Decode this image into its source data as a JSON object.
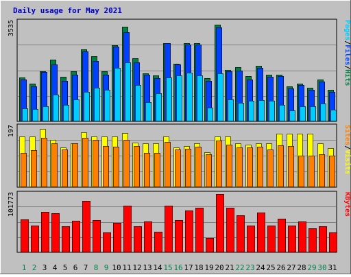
{
  "title": "Daily usage for May 2021",
  "colors": {
    "background": "#c0c0c0",
    "title": "#0000cc",
    "pages": "#00ccff",
    "files": "#0040ff",
    "hits": "#008040",
    "visits": "#ffff00",
    "sites": "#ff8000",
    "kbytes": "#ff0000",
    "weekday_label": "#000000",
    "weekend_label": "#00804a"
  },
  "chart_data": [
    {
      "type": "bar",
      "name": "hits-files-pages",
      "ymax_label": "3535",
      "ylim": [
        0,
        3535
      ],
      "right_label": [
        "Pages",
        "/",
        "Files",
        "/",
        "Hits"
      ],
      "categories": [
        "1",
        "2",
        "3",
        "4",
        "5",
        "6",
        "7",
        "8",
        "9",
        "10",
        "11",
        "12",
        "13",
        "14",
        "15",
        "16",
        "17",
        "18",
        "19",
        "20",
        "21",
        "22",
        "23",
        "24",
        "25",
        "26",
        "27",
        "28",
        "29",
        "30",
        "31"
      ],
      "weekend_days": [
        "1",
        "2",
        "8",
        "9",
        "15",
        "16",
        "22",
        "23",
        "29",
        "30"
      ],
      "series": [
        {
          "name": "Hits",
          "values": [
            1536,
            1328,
            1760,
            2172,
            1560,
            1766,
            2516,
            2276,
            1752,
            2664,
            3307,
            2215,
            1678,
            1608,
            2753,
            2032,
            2753,
            2753,
            1503,
            3402,
            1806,
            1903,
            1583,
            1946,
            1638,
            1638,
            1236,
            1332,
            1183,
            1460,
            1106
          ]
        },
        {
          "name": "Files",
          "values": [
            1467,
            1231,
            1742,
            1985,
            1418,
            1626,
            2446,
            2119,
            1626,
            2612,
            3123,
            2066,
            1626,
            1514,
            2744,
            1985,
            2700,
            2700,
            1417,
            3289,
            1757,
            1785,
            1468,
            1869,
            1554,
            1593,
            1150,
            1271,
            1095,
            1388,
            1035
          ]
        },
        {
          "name": "Pages",
          "values": [
            468,
            424,
            522,
            949,
            566,
            761,
            1026,
            1185,
            1097,
            1883,
            2057,
            1273,
            663,
            981,
            1539,
            1610,
            1716,
            1610,
            487,
            1681,
            761,
            649,
            725,
            743,
            725,
            579,
            375,
            522,
            540,
            627,
            398
          ]
        }
      ]
    },
    {
      "type": "bar",
      "name": "visits-sites",
      "ymax_label": "197",
      "ylim": [
        0,
        197
      ],
      "right_label": [
        "Sites",
        "/",
        "Visits"
      ],
      "categories": [
        "1",
        "2",
        "3",
        "4",
        "5",
        "6",
        "7",
        "8",
        "9",
        "10",
        "11",
        "12",
        "13",
        "14",
        "15",
        "16",
        "17",
        "18",
        "19",
        "20",
        "21",
        "22",
        "23",
        "24",
        "25",
        "26",
        "27",
        "28",
        "29",
        "30",
        "31"
      ],
      "series": [
        {
          "name": "Visits",
          "values": [
            163,
            163,
            186,
            152,
            128,
            141,
            176,
            163,
            163,
            163,
            173,
            142,
            141,
            141,
            163,
            128,
            131,
            141,
            111,
            163,
            163,
            141,
            135,
            141,
            141,
            170,
            170,
            170,
            170,
            141,
            124
          ]
        },
        {
          "name": "Sites",
          "values": [
            110,
            119,
            157,
            140,
            120,
            140,
            158,
            150,
            131,
            130,
            150,
            131,
            109,
            109,
            144,
            120,
            123,
            129,
            105,
            149,
            135,
            128,
            127,
            129,
            120,
            134,
            131,
            100,
            100,
            104,
            100
          ]
        }
      ]
    },
    {
      "type": "bar",
      "name": "kbytes",
      "ymax_label": "101773",
      "ylim": [
        0,
        101773
      ],
      "right_label": [
        "KBytes"
      ],
      "categories": [
        "1",
        "2",
        "3",
        "4",
        "5",
        "6",
        "7",
        "8",
        "9",
        "10",
        "11",
        "12",
        "13",
        "14",
        "15",
        "16",
        "17",
        "18",
        "19",
        "20",
        "21",
        "22",
        "23",
        "24",
        "25",
        "26",
        "27",
        "28",
        "29",
        "30",
        "31"
      ],
      "series": [
        {
          "name": "KBytes",
          "values": [
            56480,
            46140,
            69280,
            67020,
            43980,
            53320,
            87360,
            55540,
            33500,
            49840,
            79180,
            43980,
            52420,
            35480,
            79180,
            54580,
            71580,
            76580,
            24120,
            99520,
            76600,
            62900,
            45400,
            68400,
            45420,
            57380,
            45640,
            52440,
            41160,
            44760,
            33520
          ]
        }
      ]
    }
  ]
}
